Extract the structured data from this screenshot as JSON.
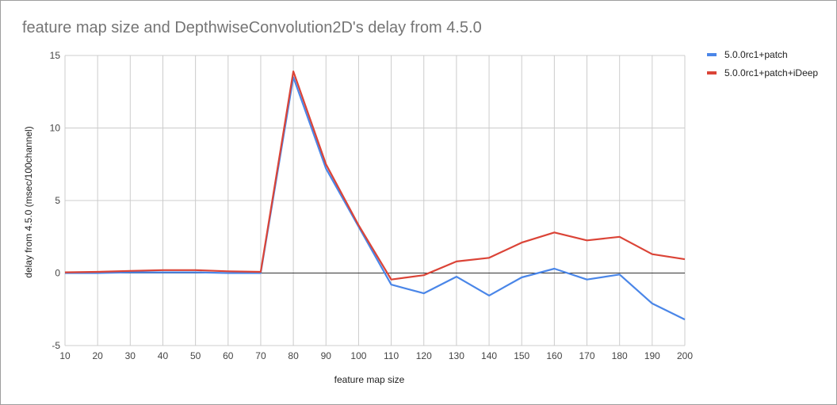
{
  "chart_data": {
    "type": "line",
    "title": "feature map size and DepthwiseConvolution2D's delay from 4.5.0",
    "xlabel": "feature map size",
    "ylabel": "delay from 4.5.0 (msec/100channel)",
    "x": [
      10,
      20,
      30,
      40,
      50,
      60,
      70,
      80,
      90,
      100,
      110,
      120,
      130,
      140,
      150,
      160,
      170,
      180,
      190,
      200
    ],
    "xlim": [
      10,
      200
    ],
    "ylim": [
      -5,
      15
    ],
    "yticks": [
      15,
      10,
      5,
      0,
      -5
    ],
    "grid": true,
    "legend_position": "right",
    "series": [
      {
        "name": "5.0.0rc1+patch",
        "color": "#4a86e8",
        "values": [
          0.0,
          0.0,
          0.05,
          0.05,
          0.05,
          0.0,
          0.0,
          13.5,
          7.2,
          3.2,
          -0.8,
          -1.4,
          -0.25,
          -1.55,
          -0.3,
          0.3,
          -0.45,
          -0.1,
          -2.1,
          -3.2
        ]
      },
      {
        "name": "5.0.0rc1+patch+iDeep",
        "color": "#db4437",
        "values": [
          0.05,
          0.08,
          0.15,
          0.2,
          0.2,
          0.12,
          0.08,
          13.9,
          7.5,
          3.3,
          -0.45,
          -0.15,
          0.8,
          1.05,
          2.1,
          2.8,
          2.25,
          2.5,
          1.3,
          0.95
        ]
      }
    ]
  }
}
